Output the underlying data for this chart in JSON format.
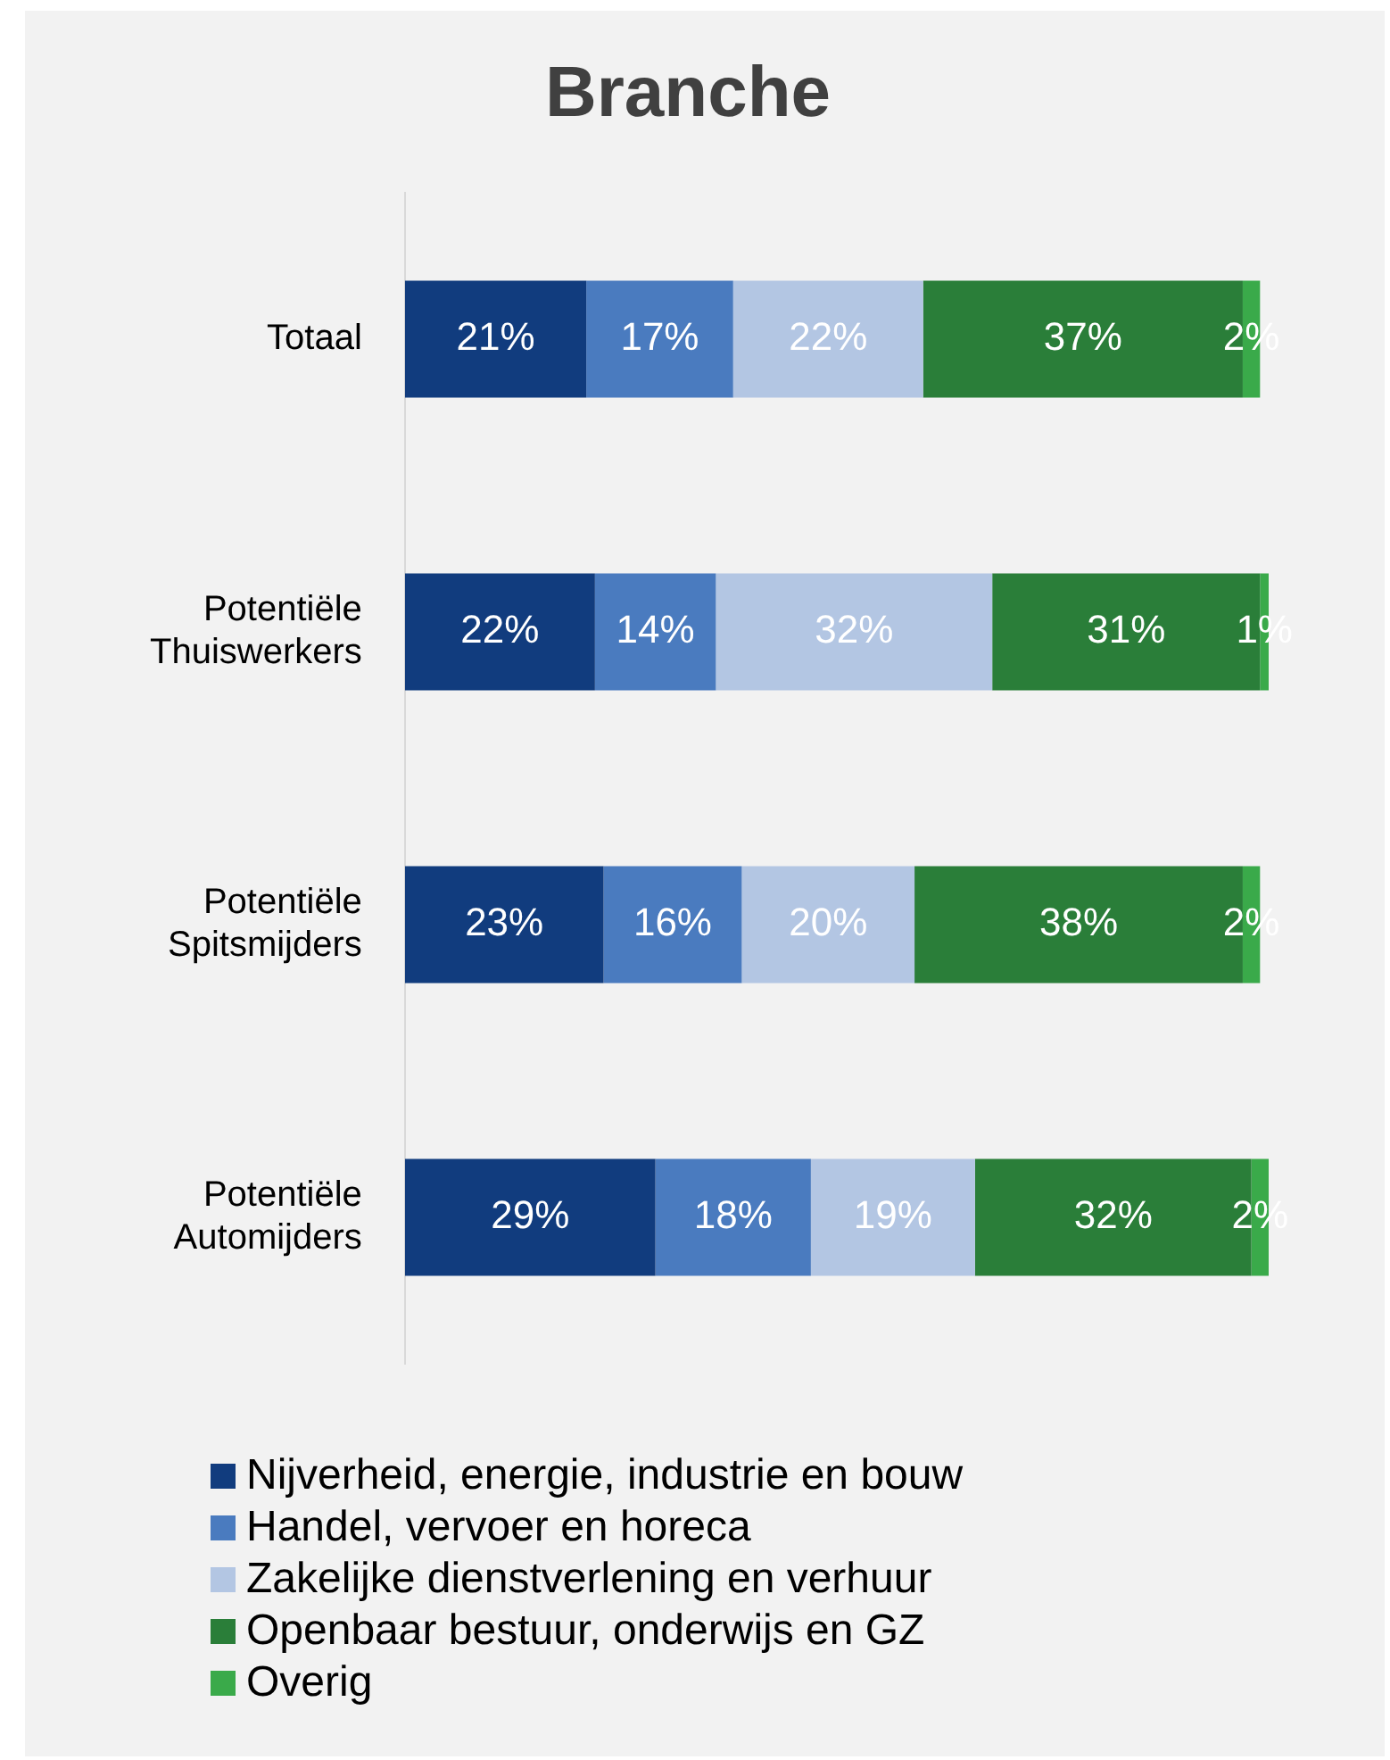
{
  "chart_data": {
    "type": "bar",
    "title": "Branche",
    "orientation": "horizontal",
    "stacked": true,
    "categories": [
      "Totaal",
      "Potentiële Thuiswerkers",
      "Potentiële Spitsmijders",
      "Potentiële Automijders"
    ],
    "series": [
      {
        "name": "Nijverheid, energie, industrie en bouw",
        "color": "#113c7e",
        "values": [
          21,
          22,
          23,
          29
        ],
        "value_labels": [
          "21%",
          "22%",
          "23%",
          "29%"
        ]
      },
      {
        "name": "Handel, vervoer en horeca",
        "color": "#4a7bbf",
        "values": [
          17,
          14,
          16,
          18
        ],
        "value_labels": [
          "17%",
          "14%",
          "16%",
          "18%"
        ]
      },
      {
        "name": "Zakelijke dienstverlening en verhuur",
        "color": "#b3c6e3",
        "values": [
          22,
          32,
          20,
          19
        ],
        "value_labels": [
          "22%",
          "32%",
          "20%",
          "19%"
        ]
      },
      {
        "name": "Openbaar bestuur, onderwijs en GZ",
        "color": "#2a7e39",
        "values": [
          37,
          31,
          38,
          32
        ],
        "value_labels": [
          "37%",
          "31%",
          "38%",
          "32%"
        ]
      },
      {
        "name": "Overig",
        "color": "#3aaa4a",
        "values": [
          2,
          1,
          2,
          2
        ],
        "value_labels": [
          "2%",
          "1%",
          "2%",
          "2%"
        ]
      }
    ],
    "tick_labels": "y",
    "legend": "bottom"
  }
}
